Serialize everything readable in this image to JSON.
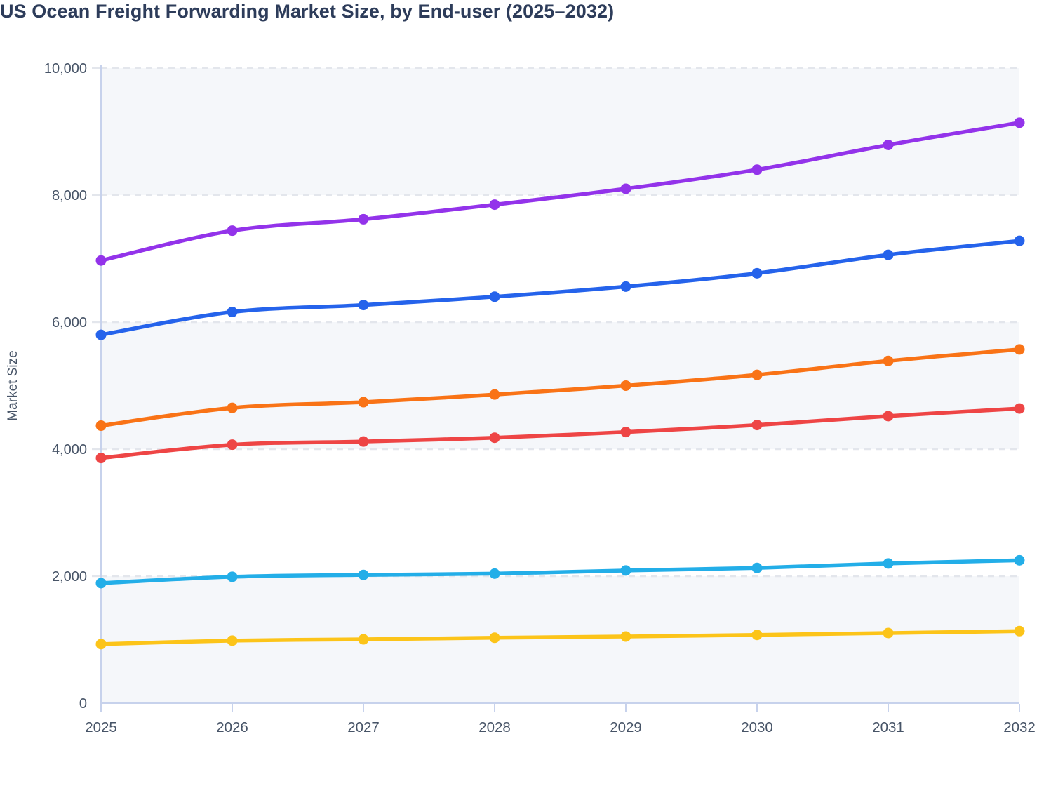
{
  "page": {
    "title": "US Ocean Freight Forwarding Market Size, by End-user (2025–2032)"
  },
  "chart_data": {
    "type": "line",
    "title": "US Ocean Freight Forwarding Market Size, by End-user (2025–2032)",
    "xlabel": "",
    "ylabel": "Market Size",
    "x": [
      2025,
      2026,
      2027,
      2028,
      2029,
      2030,
      2031,
      2032
    ],
    "ylim": [
      0,
      10000
    ],
    "ytick_interval": 2000,
    "yticks": [
      0,
      2000,
      4000,
      6000,
      8000,
      10000
    ],
    "grid": "horizontal-dashed",
    "band_pattern": "alternating-gray-white",
    "legend": "none",
    "marker": "circle",
    "series": [
      {
        "name": "purple-line",
        "color": "#9333ea",
        "values": [
          6970,
          7440,
          7620,
          7850,
          8100,
          8400,
          8790,
          9140
        ]
      },
      {
        "name": "blue-line",
        "color": "#2563eb",
        "values": [
          5800,
          6160,
          6270,
          6400,
          6560,
          6770,
          7060,
          7280
        ]
      },
      {
        "name": "orange-line",
        "color": "#f97316",
        "values": [
          4370,
          4650,
          4740,
          4860,
          5000,
          5170,
          5390,
          5570
        ]
      },
      {
        "name": "red-line",
        "color": "#ee4545",
        "values": [
          3860,
          4070,
          4120,
          4180,
          4270,
          4380,
          4520,
          4640
        ]
      },
      {
        "name": "cyan-line",
        "color": "#23aee8",
        "values": [
          1890,
          1990,
          2020,
          2040,
          2090,
          2130,
          2200,
          2250
        ]
      },
      {
        "name": "yellow-line",
        "color": "#fcc419",
        "values": [
          930,
          985,
          1005,
          1030,
          1050,
          1075,
          1105,
          1135
        ]
      }
    ]
  },
  "style": {
    "title_color": "#2d3c5a",
    "label_color": "#475467",
    "axis_color": "#c7d2ec",
    "grid_color": "#e3e6ec",
    "band_fill": "#f5f7fa",
    "background": "#ffffff"
  }
}
